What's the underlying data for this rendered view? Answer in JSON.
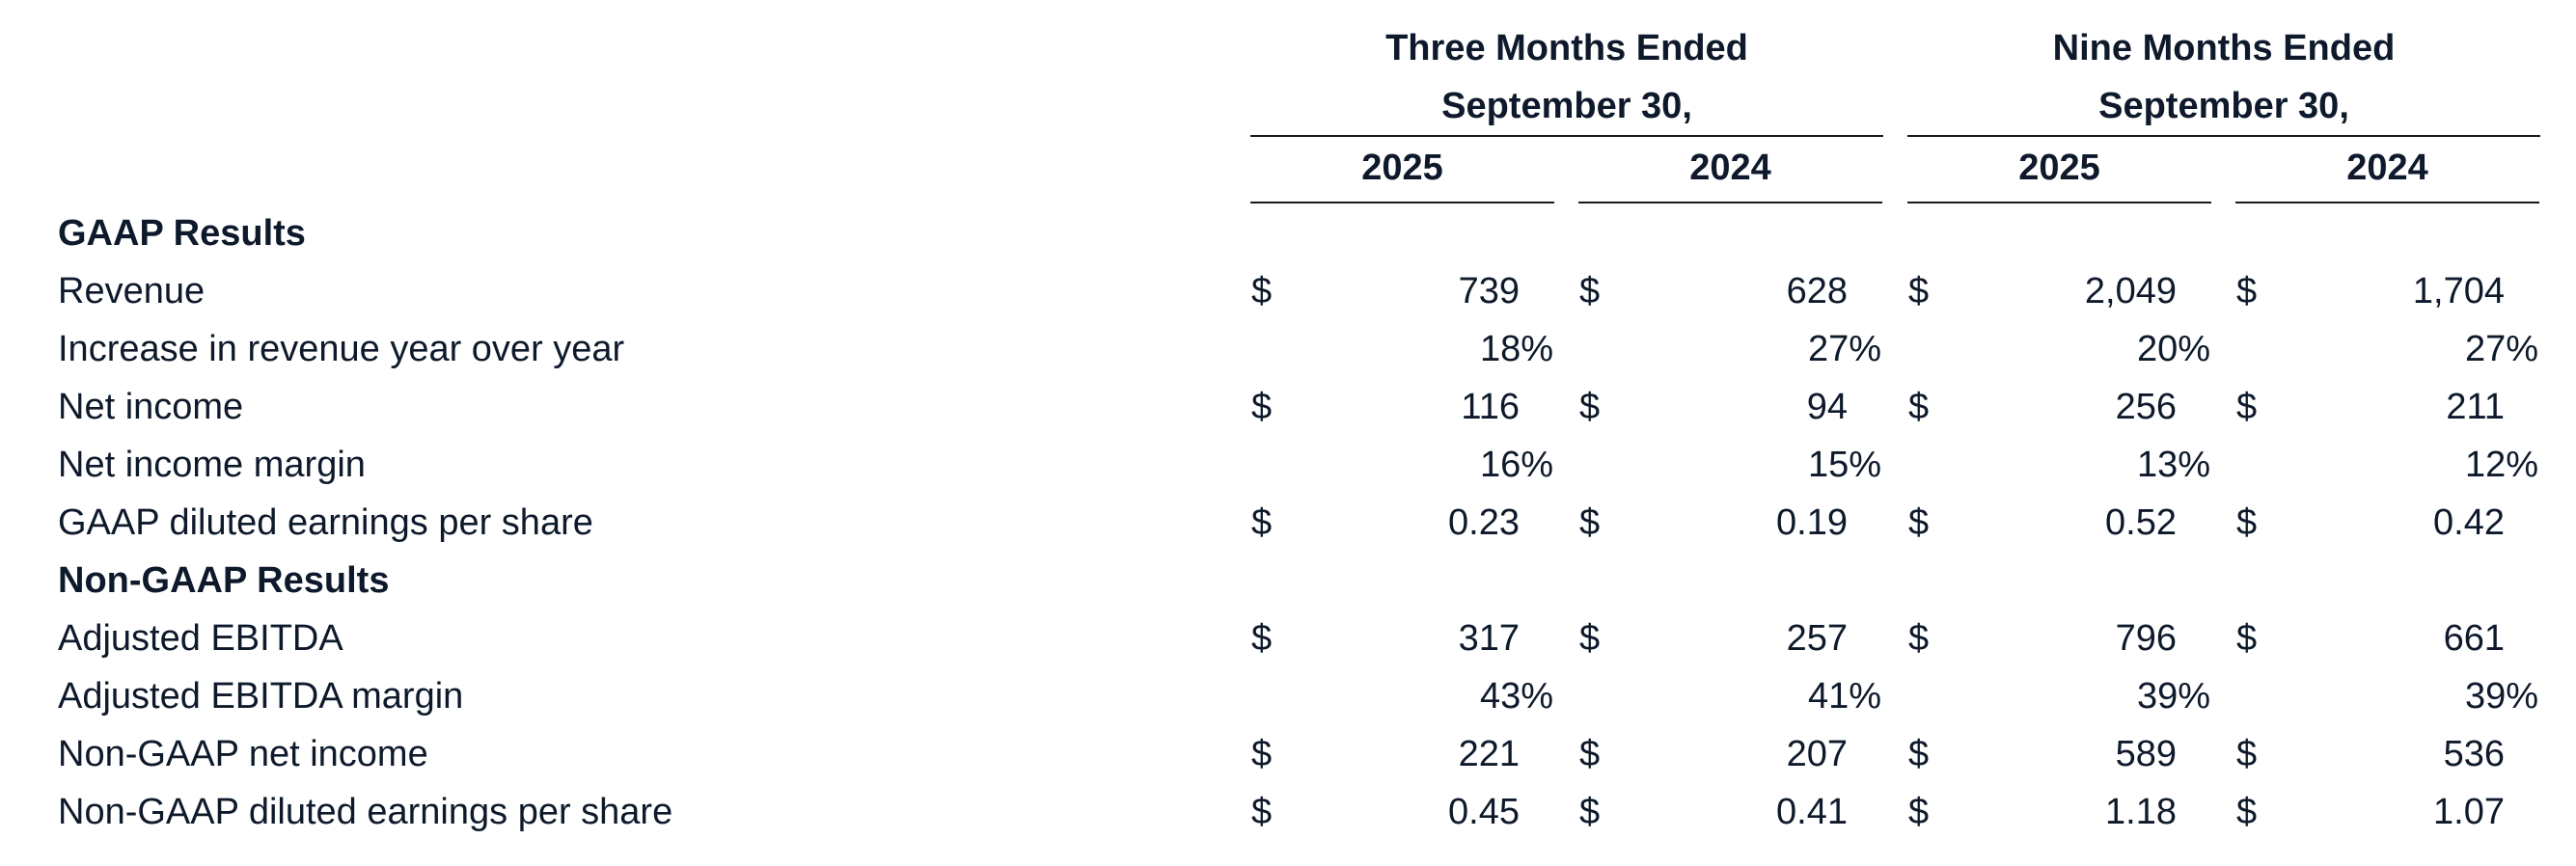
{
  "header": {
    "group1_line1": "Three Months Ended",
    "group1_line2": "September 30,",
    "group2_line1": "Nine Months Ended",
    "group2_line2": "September 30,",
    "years": [
      "2025",
      "2024",
      "2025",
      "2024"
    ]
  },
  "sections": {
    "gaap": "GAAP Results",
    "non_gaap": "Non-GAAP Results"
  },
  "rows": [
    {
      "label": "Revenue",
      "dollar": true,
      "values": [
        "739",
        "628",
        "2,049",
        "1,704"
      ]
    },
    {
      "label": "Increase in revenue year over year",
      "dollar": false,
      "values": [
        "18%",
        "27%",
        "20%",
        "27%"
      ]
    },
    {
      "label": "Net income",
      "dollar": true,
      "values": [
        "116",
        "94",
        "256",
        "211"
      ]
    },
    {
      "label": "Net income margin",
      "dollar": false,
      "values": [
        "16%",
        "15%",
        "13%",
        "12%"
      ]
    },
    {
      "label": "GAAP diluted earnings per share",
      "dollar": true,
      "values": [
        "0.23",
        "0.19",
        "0.52",
        "0.42"
      ]
    },
    {
      "label": "Adjusted EBITDA",
      "dollar": true,
      "values": [
        "317",
        "257",
        "796",
        "661"
      ]
    },
    {
      "label": "Adjusted EBITDA margin",
      "dollar": false,
      "values": [
        "43%",
        "41%",
        "39%",
        "39%"
      ]
    },
    {
      "label": "Non-GAAP net income",
      "dollar": true,
      "values": [
        "221",
        "207",
        "589",
        "536"
      ]
    },
    {
      "label": "Non-GAAP diluted earnings per share",
      "dollar": true,
      "values": [
        "0.45",
        "0.41",
        "1.18",
        "1.07"
      ]
    }
  ],
  "currency_symbol": "$"
}
